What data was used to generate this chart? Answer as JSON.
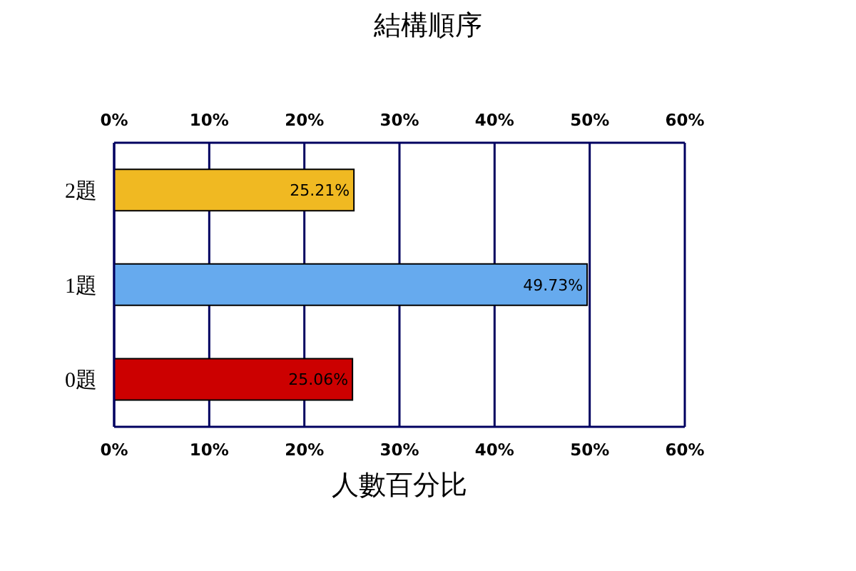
{
  "chart_data": {
    "type": "bar",
    "orientation": "horizontal",
    "title": "結構順序",
    "xlabel": "人數百分比",
    "categories": [
      "2題",
      "1題",
      "0題"
    ],
    "values": [
      25.21,
      49.73,
      25.06
    ],
    "colors": [
      "#f0b922",
      "#66aaee",
      "#cc0000"
    ],
    "value_labels": [
      "25.21%",
      "49.73%",
      "25.06%"
    ],
    "xlim": [
      0,
      60
    ],
    "xticks": [
      {
        "value": 0,
        "label": "0%"
      },
      {
        "value": 10,
        "label": "10%"
      },
      {
        "value": 20,
        "label": "20%"
      },
      {
        "value": 30,
        "label": "30%"
      },
      {
        "value": 40,
        "label": "40%"
      },
      {
        "value": 50,
        "label": "50%"
      },
      {
        "value": 60,
        "label": "60%"
      }
    ],
    "x2lim": [
      0,
      60
    ],
    "x2ticks": [
      {
        "value": 0,
        "label": "0%"
      },
      {
        "value": 10,
        "label": "10%"
      },
      {
        "value": 20,
        "label": "20%"
      },
      {
        "value": 30,
        "label": "30%"
      },
      {
        "value": 40,
        "label": "40%"
      },
      {
        "value": 50,
        "label": "50%"
      },
      {
        "value": 60,
        "label": "60%"
      }
    ],
    "grid": "x"
  }
}
